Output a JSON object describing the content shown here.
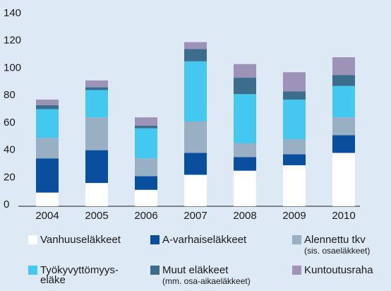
{
  "chart_data": {
    "type": "stacked_bar",
    "categories": [
      "2004",
      "2005",
      "2006",
      "2007",
      "2008",
      "2009",
      "2010"
    ],
    "series": [
      {
        "name": "Vanhuuseläkkeet",
        "color": "#ffffff",
        "values": [
          10,
          17,
          12,
          23,
          26,
          30,
          39
        ]
      },
      {
        "name": "A-varhaiseläkkeet",
        "color": "#0a4f9e",
        "values": [
          25,
          24,
          10,
          16,
          10,
          8,
          13
        ]
      },
      {
        "name": "Alennettu tkv",
        "note": "(sis. osaeläkkeet)",
        "color": "#98afc4",
        "values": [
          15,
          24,
          13,
          23,
          10,
          11,
          13
        ]
      },
      {
        "name": "Työkyvyttömyys-",
        "name2": "eläke",
        "color": "#45c8f0",
        "values": [
          21,
          20,
          22,
          44,
          36,
          29,
          23
        ]
      },
      {
        "name": "Muut eläkkeet",
        "note": "(mm. osa-aikaeläkkeet)",
        "color": "#3d6d8c",
        "values": [
          3,
          2,
          2,
          9,
          12,
          6,
          8
        ]
      },
      {
        "name": "Kuntoutusraha",
        "color": "#9d93b8",
        "values": [
          4,
          5,
          6,
          5,
          10,
          14,
          13
        ]
      }
    ],
    "ylim": [
      0,
      140
    ],
    "yticks": [
      0,
      20,
      40,
      60,
      80,
      100,
      120,
      140
    ]
  }
}
